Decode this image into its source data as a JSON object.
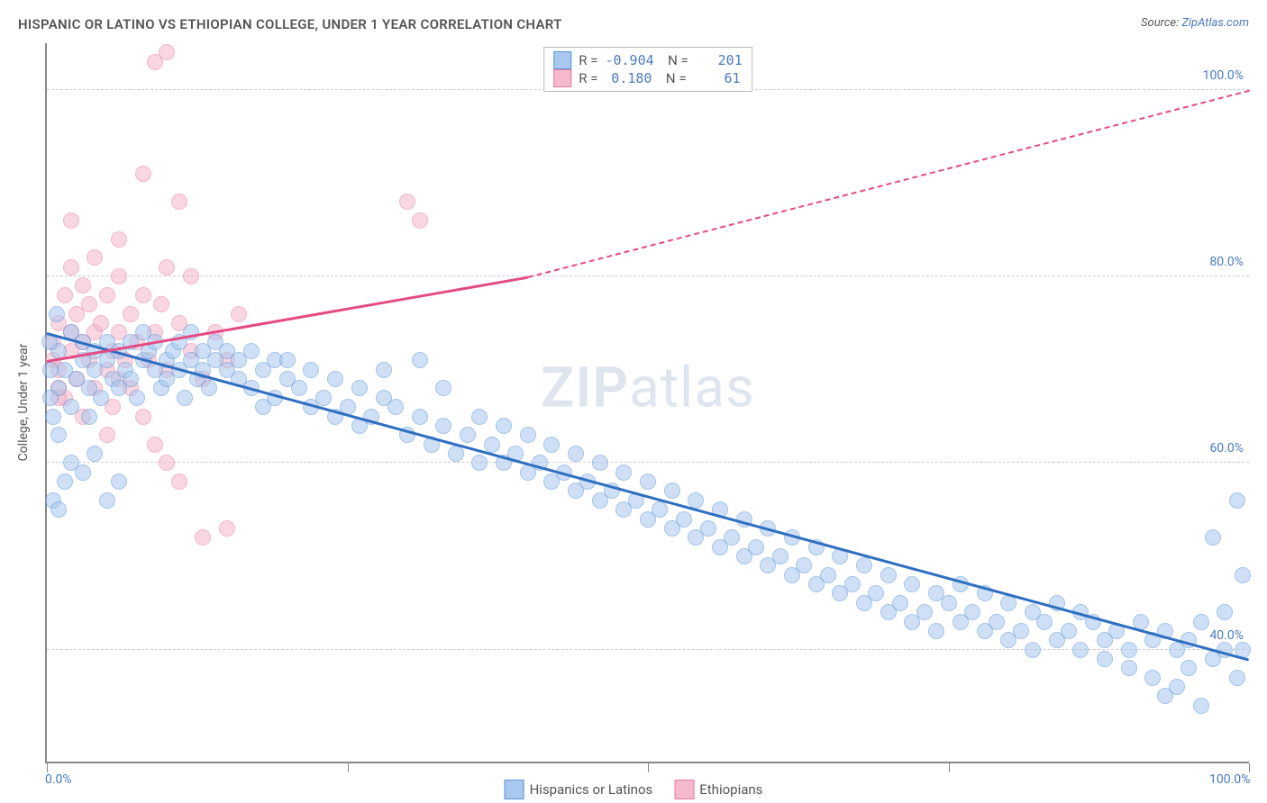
{
  "title": "HISPANIC OR LATINO VS ETHIOPIAN COLLEGE, UNDER 1 YEAR CORRELATION CHART",
  "source_prefix": "Source: ",
  "source_link": "ZipAtlas.com",
  "yaxis_title": "College, Under 1 year",
  "watermark": {
    "a": "ZIP",
    "b": "atlas"
  },
  "chart": {
    "type": "scatter",
    "xlim": [
      0,
      100
    ],
    "ylim": [
      28,
      105
    ],
    "x_ticks_major": [
      0,
      25,
      50,
      75,
      100
    ],
    "x_labels": [
      {
        "text": "0.0%",
        "x": 0
      },
      {
        "text": "100.0%",
        "x": 100
      }
    ],
    "y_gridlines": [
      40,
      60,
      80,
      100
    ],
    "y_labels": [
      {
        "text": "40.0%",
        "y": 40
      },
      {
        "text": "60.0%",
        "y": 60
      },
      {
        "text": "80.0%",
        "y": 80
      },
      {
        "text": "100.0%",
        "y": 100
      }
    ],
    "grid_color": "#cccccc",
    "background_color": "#ffffff",
    "marker_radius": 9,
    "marker_opacity": 0.55,
    "series": [
      {
        "name": "Hispanics or Latinos",
        "fill": "#a8c8ef",
        "stroke": "#5a94d6",
        "trend_color": "#2f6fc1",
        "stats": {
          "R": "-0.904",
          "N": "201"
        },
        "trend": {
          "x1": 0,
          "y1": 74,
          "x2": 100,
          "y2": 39
        },
        "points": [
          [
            1,
            72
          ],
          [
            1,
            68
          ],
          [
            1.5,
            70
          ],
          [
            2,
            74
          ],
          [
            2,
            66
          ],
          [
            2.5,
            69
          ],
          [
            3,
            71
          ],
          [
            3,
            73
          ],
          [
            3.5,
            68
          ],
          [
            3.5,
            65
          ],
          [
            4,
            72
          ],
          [
            4,
            70
          ],
          [
            4.5,
            67
          ],
          [
            5,
            71
          ],
          [
            5,
            73
          ],
          [
            5.5,
            69
          ],
          [
            6,
            72
          ],
          [
            6,
            68
          ],
          [
            6.5,
            70
          ],
          [
            7,
            73
          ],
          [
            7,
            69
          ],
          [
            7.5,
            67
          ],
          [
            8,
            71
          ],
          [
            8,
            74
          ],
          [
            8.5,
            72
          ],
          [
            9,
            70
          ],
          [
            9,
            73
          ],
          [
            9.5,
            68
          ],
          [
            10,
            71
          ],
          [
            10,
            69
          ],
          [
            10.5,
            72
          ],
          [
            11,
            70
          ],
          [
            11,
            73
          ],
          [
            11.5,
            67
          ],
          [
            12,
            74
          ],
          [
            12,
            71
          ],
          [
            12.5,
            69
          ],
          [
            13,
            72
          ],
          [
            13,
            70
          ],
          [
            13.5,
            68
          ],
          [
            14,
            71
          ],
          [
            14,
            73
          ],
          [
            15,
            70
          ],
          [
            15,
            72
          ],
          [
            16,
            69
          ],
          [
            16,
            71
          ],
          [
            17,
            68
          ],
          [
            17,
            72
          ],
          [
            18,
            70
          ],
          [
            18,
            66
          ],
          [
            19,
            71
          ],
          [
            19,
            67
          ],
          [
            20,
            69
          ],
          [
            20,
            71
          ],
          [
            21,
            68
          ],
          [
            22,
            66
          ],
          [
            22,
            70
          ],
          [
            23,
            67
          ],
          [
            24,
            65
          ],
          [
            24,
            69
          ],
          [
            25,
            66
          ],
          [
            26,
            64
          ],
          [
            26,
            68
          ],
          [
            27,
            65
          ],
          [
            28,
            67
          ],
          [
            28,
            70
          ],
          [
            29,
            66
          ],
          [
            30,
            63
          ],
          [
            31,
            65
          ],
          [
            31,
            71
          ],
          [
            32,
            62
          ],
          [
            33,
            64
          ],
          [
            33,
            68
          ],
          [
            34,
            61
          ],
          [
            35,
            63
          ],
          [
            36,
            65
          ],
          [
            36,
            60
          ],
          [
            37,
            62
          ],
          [
            38,
            60
          ],
          [
            38,
            64
          ],
          [
            39,
            61
          ],
          [
            40,
            59
          ],
          [
            40,
            63
          ],
          [
            41,
            60
          ],
          [
            42,
            58
          ],
          [
            42,
            62
          ],
          [
            43,
            59
          ],
          [
            44,
            61
          ],
          [
            44,
            57
          ],
          [
            45,
            58
          ],
          [
            46,
            56
          ],
          [
            46,
            60
          ],
          [
            47,
            57
          ],
          [
            48,
            55
          ],
          [
            48,
            59
          ],
          [
            49,
            56
          ],
          [
            50,
            54
          ],
          [
            50,
            58
          ],
          [
            51,
            55
          ],
          [
            52,
            57
          ],
          [
            52,
            53
          ],
          [
            53,
            54
          ],
          [
            54,
            52
          ],
          [
            54,
            56
          ],
          [
            55,
            53
          ],
          [
            56,
            55
          ],
          [
            56,
            51
          ],
          [
            57,
            52
          ],
          [
            58,
            50
          ],
          [
            58,
            54
          ],
          [
            59,
            51
          ],
          [
            60,
            49
          ],
          [
            60,
            53
          ],
          [
            61,
            50
          ],
          [
            62,
            48
          ],
          [
            62,
            52
          ],
          [
            63,
            49
          ],
          [
            64,
            47
          ],
          [
            64,
            51
          ],
          [
            65,
            48
          ],
          [
            66,
            46
          ],
          [
            66,
            50
          ],
          [
            67,
            47
          ],
          [
            68,
            45
          ],
          [
            68,
            49
          ],
          [
            69,
            46
          ],
          [
            70,
            44
          ],
          [
            70,
            48
          ],
          [
            71,
            45
          ],
          [
            72,
            47
          ],
          [
            72,
            43
          ],
          [
            73,
            44
          ],
          [
            74,
            46
          ],
          [
            74,
            42
          ],
          [
            75,
            45
          ],
          [
            76,
            43
          ],
          [
            76,
            47
          ],
          [
            77,
            44
          ],
          [
            78,
            42
          ],
          [
            78,
            46
          ],
          [
            79,
            43
          ],
          [
            80,
            41
          ],
          [
            80,
            45
          ],
          [
            81,
            42
          ],
          [
            82,
            44
          ],
          [
            82,
            40
          ],
          [
            83,
            43
          ],
          [
            84,
            41
          ],
          [
            84,
            45
          ],
          [
            85,
            42
          ],
          [
            86,
            40
          ],
          [
            86,
            44
          ],
          [
            87,
            43
          ],
          [
            88,
            41
          ],
          [
            88,
            39
          ],
          [
            89,
            42
          ],
          [
            90,
            40
          ],
          [
            90,
            38
          ],
          [
            91,
            43
          ],
          [
            92,
            41
          ],
          [
            92,
            37
          ],
          [
            93,
            42
          ],
          [
            93,
            35
          ],
          [
            94,
            40
          ],
          [
            94,
            36
          ],
          [
            95,
            41
          ],
          [
            95,
            38
          ],
          [
            96,
            43
          ],
          [
            96,
            34
          ],
          [
            97,
            39
          ],
          [
            97,
            52
          ],
          [
            98,
            40
          ],
          [
            98,
            44
          ],
          [
            99,
            37
          ],
          [
            99,
            56
          ],
          [
            99.5,
            40
          ],
          [
            99.5,
            48
          ],
          [
            5,
            56
          ],
          [
            6,
            58
          ],
          [
            3,
            59
          ],
          [
            2,
            60
          ],
          [
            4,
            61
          ],
          [
            1,
            63
          ],
          [
            0.5,
            65
          ],
          [
            1.5,
            58
          ],
          [
            0.5,
            56
          ],
          [
            1,
            55
          ],
          [
            0.3,
            70
          ],
          [
            0.2,
            73
          ],
          [
            0.8,
            76
          ],
          [
            0.3,
            67
          ]
        ]
      },
      {
        "name": "Ethiopians",
        "fill": "#f5b8cc",
        "stroke": "#e87ba0",
        "trend_color": "#e44b85",
        "stats": {
          "R": "0.180",
          "N": "61"
        },
        "trend_solid": {
          "x1": 0,
          "y1": 71,
          "x2": 40,
          "y2": 80
        },
        "trend_dash": {
          "x1": 40,
          "y1": 80,
          "x2": 100,
          "y2": 100
        },
        "points": [
          [
            0.5,
            71
          ],
          [
            0.5,
            73
          ],
          [
            1,
            68
          ],
          [
            1,
            70
          ],
          [
            1,
            75
          ],
          [
            1.5,
            78
          ],
          [
            1.5,
            67
          ],
          [
            2,
            72
          ],
          [
            2,
            74
          ],
          [
            2,
            81
          ],
          [
            2.5,
            69
          ],
          [
            2.5,
            76
          ],
          [
            3,
            73
          ],
          [
            3,
            79
          ],
          [
            3,
            65
          ],
          [
            3.5,
            71
          ],
          [
            3.5,
            77
          ],
          [
            4,
            74
          ],
          [
            4,
            68
          ],
          [
            4,
            82
          ],
          [
            4.5,
            75
          ],
          [
            5,
            70
          ],
          [
            5,
            78
          ],
          [
            5,
            63
          ],
          [
            5.5,
            72
          ],
          [
            5.5,
            66
          ],
          [
            6,
            74
          ],
          [
            6,
            69
          ],
          [
            6,
            80
          ],
          [
            6.5,
            71
          ],
          [
            7,
            76
          ],
          [
            7,
            68
          ],
          [
            7.5,
            73
          ],
          [
            8,
            78
          ],
          [
            8,
            65
          ],
          [
            8.5,
            71
          ],
          [
            9,
            74
          ],
          [
            9,
            62
          ],
          [
            9.5,
            77
          ],
          [
            10,
            70
          ],
          [
            10,
            81
          ],
          [
            10,
            60
          ],
          [
            11,
            75
          ],
          [
            11,
            58
          ],
          [
            12,
            72
          ],
          [
            12,
            80
          ],
          [
            13,
            69
          ],
          [
            14,
            74
          ],
          [
            15,
            71
          ],
          [
            15,
            53
          ],
          [
            16,
            76
          ],
          [
            8,
            91
          ],
          [
            9,
            103
          ],
          [
            10,
            104
          ],
          [
            11,
            88
          ],
          [
            13,
            52
          ],
          [
            30,
            88
          ],
          [
            31,
            86
          ],
          [
            6,
            84
          ],
          [
            2,
            86
          ],
          [
            1,
            67
          ]
        ]
      }
    ]
  },
  "legend_bottom": [
    {
      "label": "Hispanics or Latinos",
      "fill": "#a8c8ef",
      "stroke": "#5a94d6"
    },
    {
      "label": "Ethiopians",
      "fill": "#f5b8cc",
      "stroke": "#e87ba0"
    }
  ]
}
